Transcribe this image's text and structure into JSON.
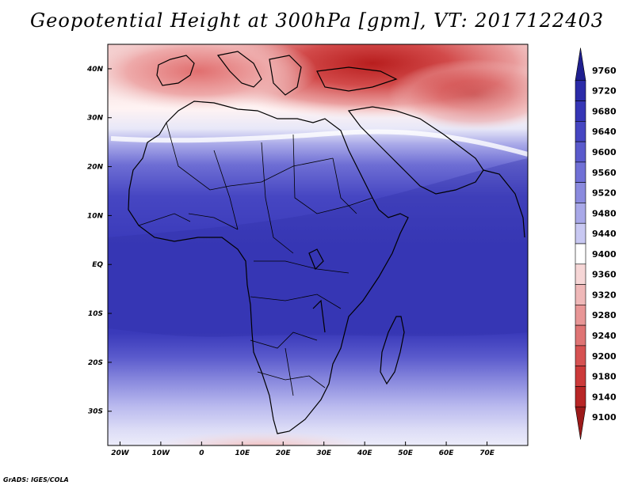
{
  "title": "Geopotential Height at 300hPa [gpm], VT: 2017122403",
  "credit": "GrADS: IGES/COLA",
  "map": {
    "lon_range": [
      -23,
      80
    ],
    "lat_range": [
      -37,
      45
    ],
    "lon_ticks": [
      {
        "value": -20,
        "label": "20W"
      },
      {
        "value": -10,
        "label": "10W"
      },
      {
        "value": 0,
        "label": "0"
      },
      {
        "value": 10,
        "label": "10E"
      },
      {
        "value": 20,
        "label": "20E"
      },
      {
        "value": 30,
        "label": "30E"
      },
      {
        "value": 40,
        "label": "40E"
      },
      {
        "value": 50,
        "label": "50E"
      },
      {
        "value": 60,
        "label": "60E"
      },
      {
        "value": 70,
        "label": "70E"
      }
    ],
    "lat_ticks": [
      {
        "value": 40,
        "label": "40N"
      },
      {
        "value": 30,
        "label": "30N"
      },
      {
        "value": 20,
        "label": "20N"
      },
      {
        "value": 10,
        "label": "10N"
      },
      {
        "value": 0,
        "label": "EQ"
      },
      {
        "value": -10,
        "label": "10S"
      },
      {
        "value": -20,
        "label": "20S"
      },
      {
        "value": -30,
        "label": "30S"
      }
    ]
  },
  "colorbar": {
    "levels": [
      "9760",
      "9720",
      "9680",
      "9640",
      "9600",
      "9560",
      "9520",
      "9480",
      "9440",
      "9400",
      "9360",
      "9320",
      "9280",
      "9240",
      "9200",
      "9180",
      "9140",
      "9100"
    ],
    "colors": [
      "#1f1f8f",
      "#2b2ba8",
      "#3636b6",
      "#4646c2",
      "#5a5acc",
      "#7070d6",
      "#8a8ade",
      "#a8a8e8",
      "#c8c8f2",
      "#ffffff",
      "#f6d6d6",
      "#efb8b8",
      "#e89696",
      "#df7474",
      "#d65252",
      "#cc3a3a",
      "#b82626",
      "#9c1a1a"
    ]
  },
  "chart_data": {
    "type": "heatmap",
    "variable": "Geopotential Height at 300hPa",
    "units": "gpm",
    "valid_time": "2017122403",
    "lon_range": [
      -23,
      80
    ],
    "lat_range": [
      -37,
      45
    ],
    "colorbar_levels": [
      9100,
      9140,
      9180,
      9200,
      9240,
      9280,
      9320,
      9360,
      9400,
      9440,
      9480,
      9520,
      9560,
      9600,
      9640,
      9680,
      9720,
      9760
    ],
    "approx_zonal_profile": [
      {
        "lat": 42,
        "value": 9200
      },
      {
        "lat": 38,
        "value": 9280
      },
      {
        "lat": 32,
        "value": 9360
      },
      {
        "lat": 28,
        "value": 9480
      },
      {
        "lat": 20,
        "value": 9600
      },
      {
        "lat": 10,
        "value": 9680
      },
      {
        "lat": 0,
        "value": 9680
      },
      {
        "lat": -10,
        "value": 9680
      },
      {
        "lat": -18,
        "value": 9640
      },
      {
        "lat": -25,
        "value": 9560
      },
      {
        "lat": -32,
        "value": 9480
      },
      {
        "lat": -36,
        "value": 9440
      }
    ]
  }
}
